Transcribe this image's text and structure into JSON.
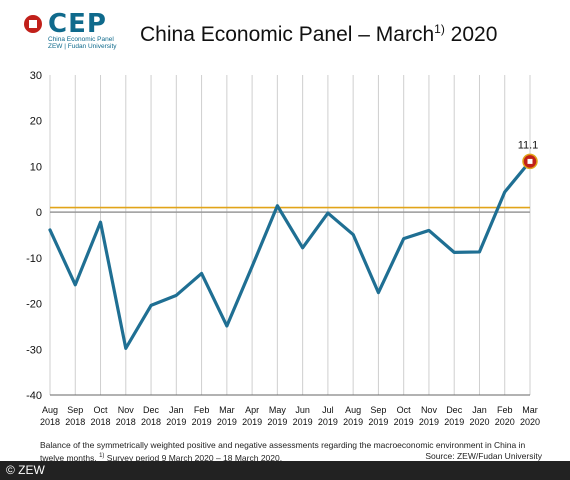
{
  "logo": {
    "name": "CEP",
    "subtitle_line1": "China Economic Panel",
    "subtitle_line2": "ZEW | Fudan University"
  },
  "title": {
    "text": "China Economic Panel – March",
    "footnote_mark": "1)",
    "year": "2020"
  },
  "chart_data": {
    "type": "line",
    "x": [
      [
        "Aug",
        "2018"
      ],
      [
        "Sep",
        "2018"
      ],
      [
        "Oct",
        "2018"
      ],
      [
        "Nov",
        "2018"
      ],
      [
        "Dec",
        "2018"
      ],
      [
        "Jan",
        "2019"
      ],
      [
        "Feb",
        "2019"
      ],
      [
        "Mar",
        "2019"
      ],
      [
        "Apr",
        "2019"
      ],
      [
        "May",
        "2019"
      ],
      [
        "Jun",
        "2019"
      ],
      [
        "Jul",
        "2019"
      ],
      [
        "Aug",
        "2019"
      ],
      [
        "Sep",
        "2019"
      ],
      [
        "Oct",
        "2019"
      ],
      [
        "Nov",
        "2019"
      ],
      [
        "Dec",
        "2019"
      ],
      [
        "Jan",
        "2020"
      ],
      [
        "Feb",
        "2020"
      ],
      [
        "Mar",
        "2020"
      ]
    ],
    "series": [
      {
        "values": [
          -3.9,
          -15.9,
          -2.2,
          -29.8,
          -20.4,
          -18.2,
          -13.4,
          -24.9,
          -11.9,
          1.4,
          -7.8,
          -0.2,
          -4.9,
          -17.6,
          -5.8,
          -4.0,
          -8.8,
          -8.7,
          4.4,
          11.1
        ],
        "color": "#1f6f93"
      }
    ],
    "reference_line": {
      "value": 1.0,
      "color": "#e1a419"
    },
    "zero_line_color": "#999999",
    "ylim": [
      -40,
      30
    ],
    "yticks": [
      -40,
      -30,
      -20,
      -10,
      0,
      10,
      20,
      30
    ],
    "last_point_label": "11.1",
    "last_point_marker_color": "#c1201a",
    "grid": "vertical",
    "xlabel": "",
    "ylabel": ""
  },
  "notes": {
    "line1": "Balance of the symmetrically weighted positive and negative assessments regarding the macroeconomic environment in China in",
    "line2_start": "twelve months.",
    "line2_mark": "1)",
    "line2_rest": "Survey period 9 March 2020 – 18 March 2020.",
    "source": "Source: ZEW/Fudan University"
  },
  "footer": {
    "copyright": "© ZEW"
  }
}
